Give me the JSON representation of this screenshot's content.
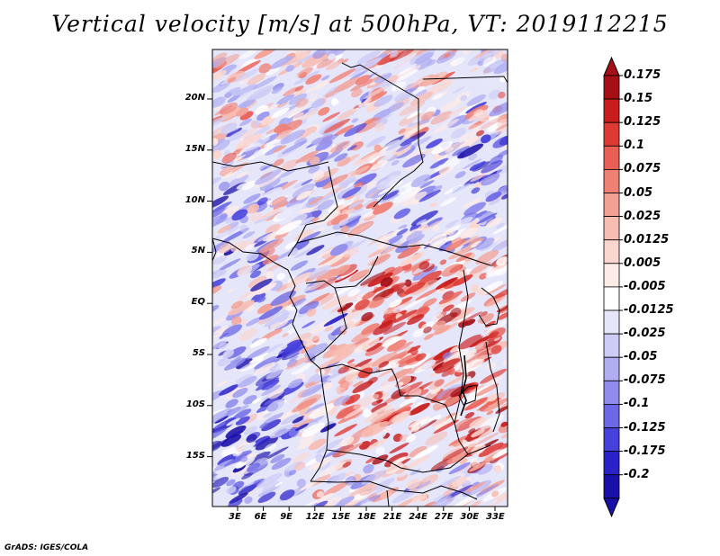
{
  "title": "Vertical velocity [m/s] at 500hPa, VT: 2019112215",
  "credit": "GrADS: IGES/COLA",
  "map": {
    "lon_labels": [
      "3E",
      "6E",
      "9E",
      "12E",
      "15E",
      "18E",
      "21E",
      "24E",
      "27E",
      "30E",
      "33E"
    ],
    "lat_labels": [
      "20N",
      "15N",
      "10N",
      "5N",
      "EQ",
      "5S",
      "10S",
      "15S"
    ],
    "lon_range": [
      "1E",
      "35E"
    ],
    "lat_range": [
      "19S",
      "24N"
    ]
  },
  "colorbar": {
    "labels": [
      "0.175",
      "0.15",
      "0.125",
      "0.1",
      "0.075",
      "0.05",
      "0.025",
      "0.0125",
      "0.005",
      "-0.005",
      "-0.0125",
      "-0.025",
      "-0.05",
      "-0.075",
      "-0.1",
      "-0.125",
      "-0.175",
      "-0.2"
    ],
    "colors": [
      "#a50f15",
      "#c81d1d",
      "#de3a34",
      "#e95f55",
      "#ef8074",
      "#f3a094",
      "#f7bdb3",
      "#fbd6cf",
      "#fdebe7",
      "#ffffff",
      "#e6e6fb",
      "#cdccf6",
      "#b0aef1",
      "#8f8ced",
      "#6c68e6",
      "#4741dc",
      "#2a21c8",
      "#1a0fa8"
    ]
  }
}
